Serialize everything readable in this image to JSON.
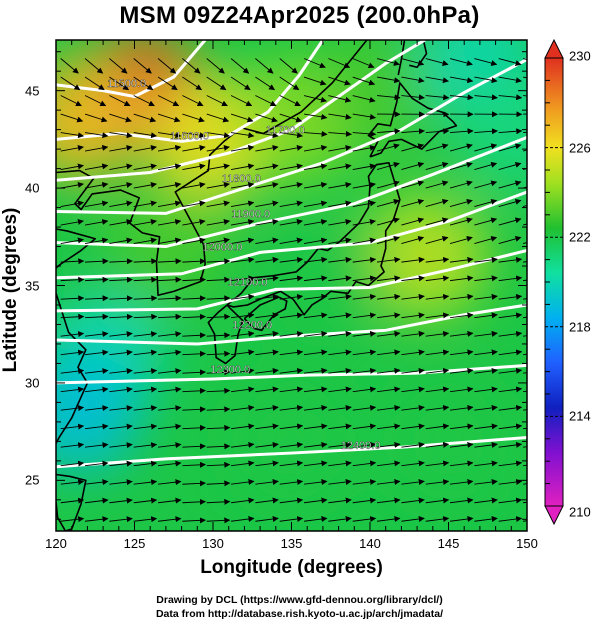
{
  "title": "MSM 09Z24Apr2025 (200.0hPa)",
  "xlabel": "Longitude (degrees)",
  "ylabel": "Latitude  (degrees)",
  "credits": [
    "Drawing by DCL (https://www.gfd-dennou.org/library/dcl/)",
    "Data from http://database.rish.kyoto-u.ac.jp/arch/jmadata/"
  ],
  "x_ticks": [
    "120",
    "125",
    "130",
    "135",
    "140",
    "145",
    "150"
  ],
  "y_ticks": [
    "25",
    "30",
    "35",
    "40",
    "45"
  ],
  "colorbar": {
    "min": 210,
    "max": 230,
    "labels": [
      "230",
      "226",
      "222",
      "218",
      "214",
      "210"
    ]
  },
  "chart_data": {
    "type": "heatmap",
    "title": "MSM 09Z24Apr2025 (200.0hPa)",
    "xlabel": "Longitude (degrees)",
    "ylabel": "Latitude  (degrees)",
    "xlim": [
      120,
      150
    ],
    "ylim": [
      22.4,
      47.6
    ],
    "color_range": [
      210,
      230
    ],
    "overlays": [
      "wind vectors",
      "geopotential height contours",
      "coastlines"
    ],
    "contour_labels": [
      {
        "text": "11500.0",
        "lon": 124.5,
        "lat": 45.2
      },
      {
        "text": "11600.0",
        "lon": 128.5,
        "lat": 42.5
      },
      {
        "text": "11700.0",
        "lon": 134.6,
        "lat": 42.8
      },
      {
        "text": "11800.0",
        "lon": 131.8,
        "lat": 40.3
      },
      {
        "text": "11900.0",
        "lon": 132.4,
        "lat": 38.5
      },
      {
        "text": "12000.0",
        "lon": 130.6,
        "lat": 36.8
      },
      {
        "text": "12100.0",
        "lon": 132.2,
        "lat": 35.0
      },
      {
        "text": "12200.0",
        "lon": 132.5,
        "lat": 32.8
      },
      {
        "text": "12300.0",
        "lon": 131.1,
        "lat": 30.5
      },
      {
        "text": "12400.0",
        "lon": 139.4,
        "lat": 26.6
      }
    ],
    "temperature_field": [
      {
        "lon": 125.5,
        "lat": 45.0,
        "value": 229
      },
      {
        "lon": 121.5,
        "lat": 43.5,
        "value": 227
      },
      {
        "lon": 130.0,
        "lat": 42.5,
        "value": 226
      },
      {
        "lon": 135.5,
        "lat": 43.5,
        "value": 224
      },
      {
        "lon": 141.0,
        "lat": 45.0,
        "value": 223
      },
      {
        "lon": 147.0,
        "lat": 46.5,
        "value": 220
      },
      {
        "lon": 149.5,
        "lat": 43.0,
        "value": 221
      },
      {
        "lon": 143.5,
        "lat": 36.5,
        "value": 225
      },
      {
        "lon": 127.0,
        "lat": 37.0,
        "value": 223
      },
      {
        "lon": 137.0,
        "lat": 35.0,
        "value": 222
      },
      {
        "lon": 123.0,
        "lat": 31.5,
        "value": 220
      },
      {
        "lon": 121.5,
        "lat": 28.5,
        "value": 219
      },
      {
        "lon": 135.0,
        "lat": 27.0,
        "value": 222
      },
      {
        "lon": 145.0,
        "lat": 27.0,
        "value": 222
      }
    ]
  }
}
